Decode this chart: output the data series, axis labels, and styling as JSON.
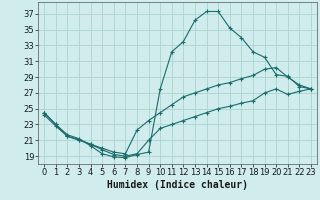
{
  "xlabel": "Humidex (Indice chaleur)",
  "bg_color": "#d0ecec",
  "grid_color": "#aad4d0",
  "line_color": "#1a6b6b",
  "xlim": [
    -0.5,
    23.5
  ],
  "ylim": [
    18,
    38.5
  ],
  "xticks": [
    0,
    1,
    2,
    3,
    4,
    5,
    6,
    7,
    8,
    9,
    10,
    11,
    12,
    13,
    14,
    15,
    16,
    17,
    18,
    19,
    20,
    21,
    22,
    23
  ],
  "yticks": [
    19,
    21,
    23,
    25,
    27,
    29,
    31,
    33,
    35,
    37
  ],
  "line1_x": [
    0,
    1,
    2,
    3,
    4,
    5,
    6,
    7,
    8,
    9,
    10,
    11,
    12,
    13,
    14,
    15,
    16,
    17,
    18,
    19,
    20,
    21,
    22,
    23
  ],
  "line1_y": [
    24.5,
    23.0,
    21.7,
    21.2,
    20.3,
    19.3,
    18.9,
    18.8,
    19.2,
    19.5,
    27.5,
    32.2,
    33.5,
    36.2,
    37.3,
    37.3,
    35.2,
    34.0,
    32.2,
    31.5,
    29.3,
    29.1,
    27.8,
    27.5
  ],
  "line2_x": [
    0,
    1,
    2,
    3,
    4,
    5,
    6,
    7,
    8,
    9,
    10,
    11,
    12,
    13,
    14,
    15,
    16,
    17,
    18,
    19,
    20,
    21,
    22,
    23
  ],
  "line2_y": [
    24.5,
    23.0,
    21.5,
    21.1,
    20.5,
    20.0,
    19.5,
    19.3,
    22.3,
    23.5,
    24.5,
    25.5,
    26.5,
    27.0,
    27.5,
    28.0,
    28.3,
    28.8,
    29.2,
    30.0,
    30.2,
    29.0,
    28.0,
    27.5
  ],
  "line3_x": [
    0,
    1,
    2,
    3,
    4,
    5,
    6,
    7,
    8,
    9,
    10,
    11,
    12,
    13,
    14,
    15,
    16,
    17,
    18,
    19,
    20,
    21,
    22,
    23
  ],
  "line3_y": [
    24.2,
    22.8,
    21.5,
    21.0,
    20.5,
    19.8,
    19.2,
    19.0,
    19.3,
    21.0,
    22.5,
    23.0,
    23.5,
    24.0,
    24.5,
    25.0,
    25.3,
    25.7,
    26.0,
    27.0,
    27.5,
    26.8,
    27.2,
    27.5
  ],
  "tick_fontsize": 6.0,
  "xlabel_fontsize": 7.0
}
